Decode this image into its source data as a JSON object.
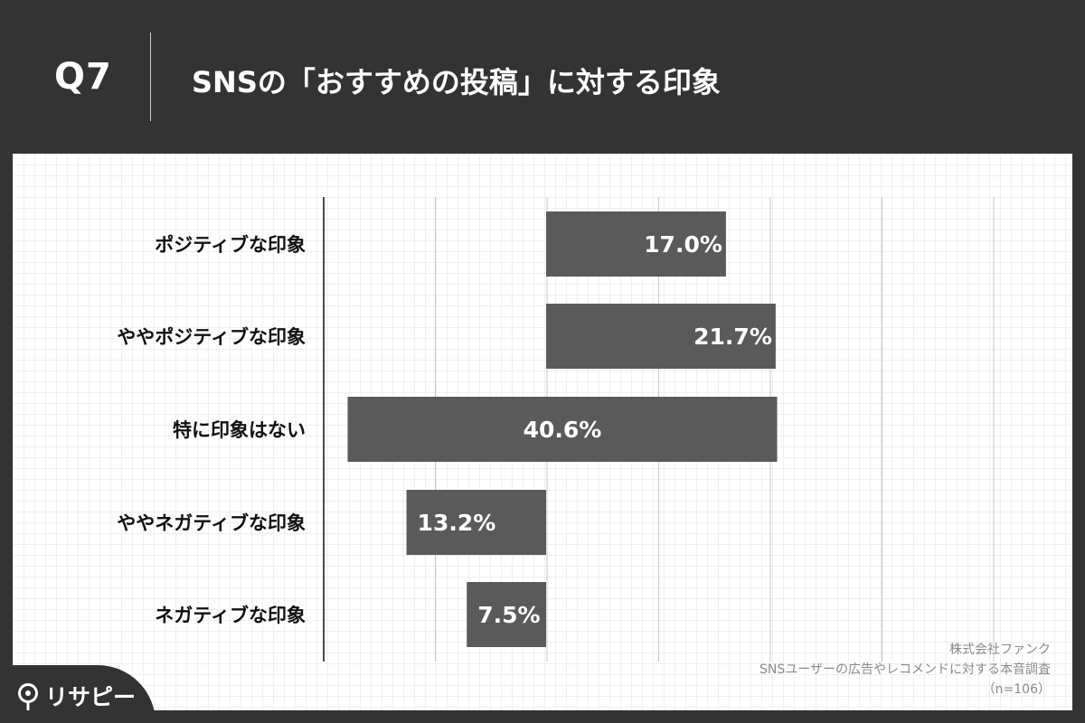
{
  "header": {
    "question": "Q7",
    "title": "SNSの「おすすめの投稿」に対する印象"
  },
  "chart_data": {
    "type": "bar",
    "orientation": "horizontal",
    "layout": "diverging",
    "categories": [
      "ポジティブな印象",
      "ややポジティブな印象",
      "特に印象はない",
      "ややネガティブな印象",
      "ネガティブな印象"
    ],
    "values": [
      17.0,
      21.7,
      40.6,
      13.2,
      7.5
    ],
    "value_labels": [
      "17.0%",
      "21.7%",
      "40.6%",
      "13.2%",
      "7.5%"
    ],
    "bar_color": "#5a5a5a",
    "grid": true
  },
  "source": {
    "line1": "株式会社ファンク",
    "line2": "SNSユーザーの広告やレコメンドに対する本音調査",
    "line3": "（n=106）"
  },
  "brand": {
    "name": "リサピー",
    "icon": "pin-icon"
  }
}
